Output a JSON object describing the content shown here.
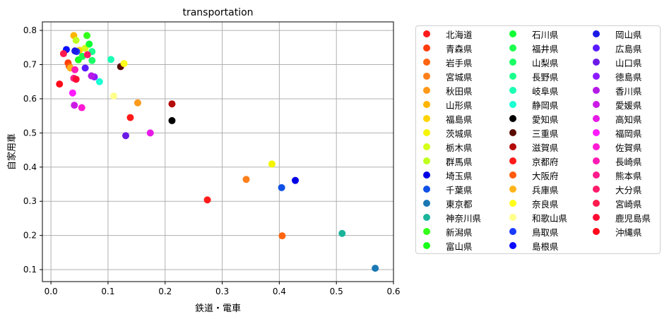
{
  "chart_data": {
    "type": "scatter",
    "title": "transportation",
    "xlabel": "鉄道・電車",
    "ylabel": "自家用車",
    "xlim": [
      -0.015,
      0.6
    ],
    "ylim": [
      0.065,
      0.825
    ],
    "xticks": [
      "0.0",
      "0.1",
      "0.2",
      "0.3",
      "0.4",
      "0.5",
      "0.6"
    ],
    "yticks": [
      "0.1",
      "0.2",
      "0.3",
      "0.4",
      "0.5",
      "0.6",
      "0.7",
      "0.8"
    ],
    "grid": true,
    "legend_position": "outside right",
    "series": [
      {
        "name": "北海道",
        "color": "#ff1a1a",
        "x": 0.274,
        "y": 0.304
      },
      {
        "name": "青森県",
        "color": "#ff3d0a",
        "x": 0.03,
        "y": 0.705
      },
      {
        "name": "岩手県",
        "color": "#ff6410",
        "x": 0.405,
        "y": 0.199
      },
      {
        "name": "宮城県",
        "color": "#ff7f1a",
        "x": 0.342,
        "y": 0.364
      },
      {
        "name": "秋田県",
        "color": "#ff9a1a",
        "x": 0.152,
        "y": 0.588
      },
      {
        "name": "山形県",
        "color": "#ffb400",
        "x": 0.04,
        "y": 0.785
      },
      {
        "name": "福島県",
        "color": "#ffd400",
        "x": 0.05,
        "y": 0.742
      },
      {
        "name": "茨城県",
        "color": "#f5f500",
        "x": 0.387,
        "y": 0.409
      },
      {
        "name": "栃木県",
        "color": "#d4ff1a",
        "x": 0.06,
        "y": 0.748
      },
      {
        "name": "群馬県",
        "color": "#bfff1f",
        "x": 0.044,
        "y": 0.771
      },
      {
        "name": "埼玉県",
        "color": "#0000e6",
        "x": 0.428,
        "y": 0.361
      },
      {
        "name": "千葉県",
        "color": "#1050e6",
        "x": 0.404,
        "y": 0.34
      },
      {
        "name": "東京都",
        "color": "#1a78b4",
        "x": 0.568,
        "y": 0.104
      },
      {
        "name": "神奈川県",
        "color": "#1ab49c",
        "x": 0.51,
        "y": 0.206
      },
      {
        "name": "新潟県",
        "color": "#33ff1a",
        "x": 0.063,
        "y": 0.785
      },
      {
        "name": "富山県",
        "color": "#1aff1a",
        "x": 0.048,
        "y": 0.714
      },
      {
        "name": "石川県",
        "color": "#0dff33",
        "x": 0.067,
        "y": 0.76
      },
      {
        "name": "福井県",
        "color": "#1aff4d",
        "x": 0.055,
        "y": 0.724
      },
      {
        "name": "山梨県",
        "color": "#1aff66",
        "x": 0.072,
        "y": 0.712
      },
      {
        "name": "長野県",
        "color": "#1aff8c",
        "x": 0.072,
        "y": 0.738
      },
      {
        "name": "岐阜県",
        "color": "#1affb4",
        "x": 0.105,
        "y": 0.715
      },
      {
        "name": "静岡県",
        "color": "#1affd4",
        "x": 0.085,
        "y": 0.65
      },
      {
        "name": "愛知県",
        "color": "#000000",
        "x": 0.212,
        "y": 0.536
      },
      {
        "name": "三重県",
        "color": "#5a0a00",
        "x": 0.122,
        "y": 0.694
      },
      {
        "name": "滋賀県",
        "color": "#b40a0a",
        "x": 0.212,
        "y": 0.585
      },
      {
        "name": "京都府",
        "color": "#ff1a1a",
        "x": 0.139,
        "y": 0.545
      },
      {
        "name": "大阪府",
        "color": "#ff5a0a",
        "x": 0.032,
        "y": 0.695
      },
      {
        "name": "兵庫県",
        "color": "#ffb41a",
        "x": 0.034,
        "y": 0.69
      },
      {
        "name": "奈良県",
        "color": "#ffff1a",
        "x": 0.128,
        "y": 0.703
      },
      {
        "name": "和歌山県",
        "color": "#ffff8c",
        "x": 0.11,
        "y": 0.608
      },
      {
        "name": "鳥取県",
        "color": "#1a3aff",
        "x": 0.045,
        "y": 0.738
      },
      {
        "name": "島根県",
        "color": "#0a0aff",
        "x": 0.027,
        "y": 0.744
      },
      {
        "name": "岡山県",
        "color": "#1a1ae6",
        "x": 0.042,
        "y": 0.74
      },
      {
        "name": "広島県",
        "color": "#5a1aff",
        "x": 0.06,
        "y": 0.69
      },
      {
        "name": "山口県",
        "color": "#6a1ae6",
        "x": 0.131,
        "y": 0.492
      },
      {
        "name": "徳島県",
        "color": "#8c1aff",
        "x": 0.076,
        "y": 0.664
      },
      {
        "name": "香川県",
        "color": "#b41ae6",
        "x": 0.071,
        "y": 0.667
      },
      {
        "name": "愛媛県",
        "color": "#cc1ae6",
        "x": 0.041,
        "y": 0.581
      },
      {
        "name": "高知県",
        "color": "#e61ae6",
        "x": 0.174,
        "y": 0.5
      },
      {
        "name": "福岡県",
        "color": "#ff1aff",
        "x": 0.038,
        "y": 0.617
      },
      {
        "name": "佐賀県",
        "color": "#ff1ad4",
        "x": 0.054,
        "y": 0.574
      },
      {
        "name": "長崎県",
        "color": "#ff1ab4",
        "x": 0.042,
        "y": 0.685
      },
      {
        "name": "熊本県",
        "color": "#ff1a8c",
        "x": 0.04,
        "y": 0.66
      },
      {
        "name": "大分県",
        "color": "#ff1a6a",
        "x": 0.064,
        "y": 0.729
      },
      {
        "name": "宮崎県",
        "color": "#ff1a4d",
        "x": 0.022,
        "y": 0.732
      },
      {
        "name": "鹿児島県",
        "color": "#ff0a33",
        "x": 0.044,
        "y": 0.657
      },
      {
        "name": "沖縄県",
        "color": "#ff0a1a",
        "x": 0.015,
        "y": 0.643
      }
    ]
  }
}
